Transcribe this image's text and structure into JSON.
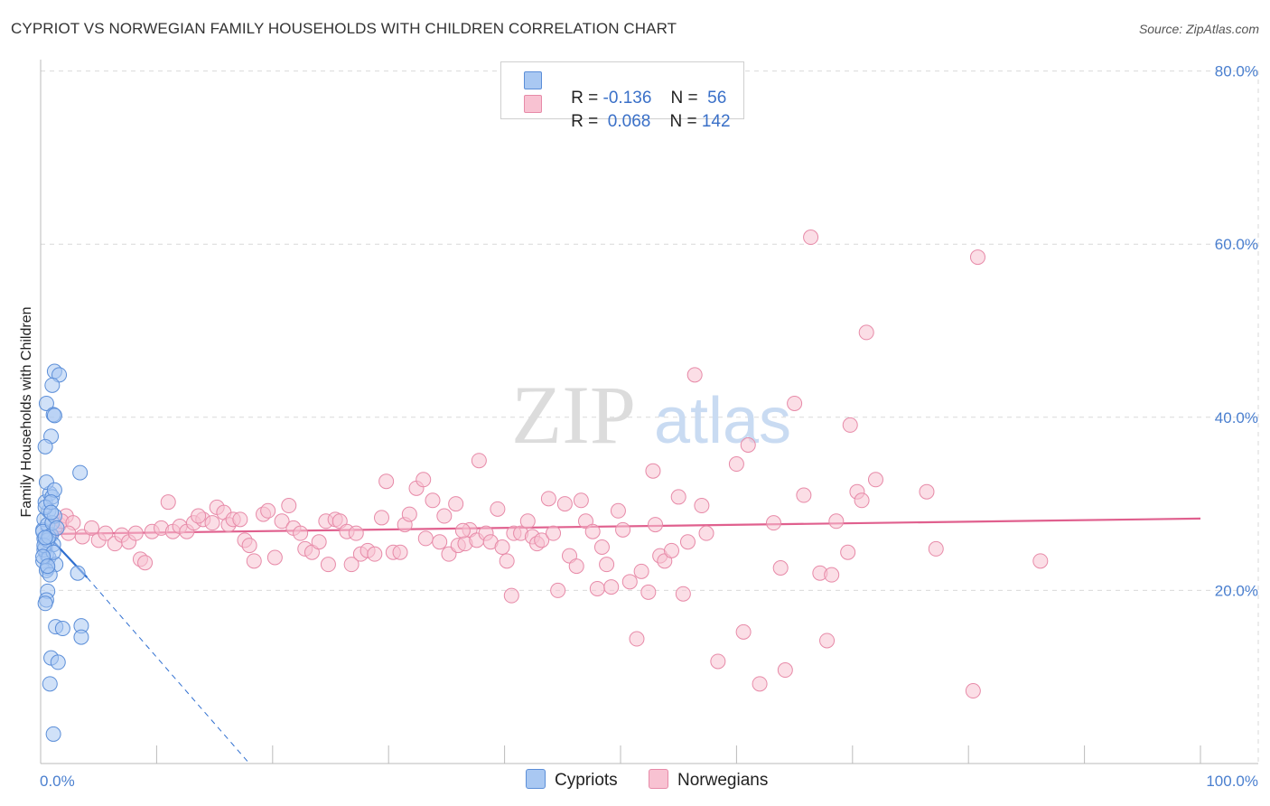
{
  "title": "CYPRIOT VS NORWEGIAN FAMILY HOUSEHOLDS WITH CHILDREN CORRELATION CHART",
  "source": "Source: ZipAtlas.com",
  "watermark": {
    "zip": "ZIP",
    "atlas": "atlas"
  },
  "colors": {
    "cypriot_fill": "#a9c8f2",
    "cypriot_stroke": "#5b8ed8",
    "cypriot_line": "#2f6fd0",
    "norwegian_fill": "#f8c2d2",
    "norwegian_stroke": "#e78aa8",
    "norwegian_line": "#e0608e",
    "grid": "#d9d9d9",
    "tick_text": "#4a7fcf"
  },
  "legend": {
    "cypriot": {
      "r_label": "R =",
      "r_value": "-0.136",
      "n_label": "N =",
      "n_value": " 56"
    },
    "norwegian": {
      "r_label": "R =",
      "r_value": " 0.068",
      "n_label": "N =",
      "n_value": "142"
    }
  },
  "bottom_legend": {
    "cypriots": "Cypriots",
    "norwegians": "Norwegians"
  },
  "chart_data": {
    "type": "scatter",
    "title": "CYPRIOT VS NORWEGIAN FAMILY HOUSEHOLDS WITH CHILDREN CORRELATION CHART",
    "xlabel": "",
    "ylabel": "Family Households with Children",
    "xlim": [
      0,
      100
    ],
    "ylim": [
      0,
      82
    ],
    "x_tick_labels": [
      "0.0%",
      "100.0%"
    ],
    "y_ticks": [
      20,
      40,
      60,
      80
    ],
    "y_tick_labels": [
      "20.0%",
      "40.0%",
      "60.0%",
      "80.0%"
    ],
    "grid": true,
    "legend_position": "top-center",
    "series": [
      {
        "name": "Cypriots",
        "r": -0.136,
        "n": 56,
        "trend": {
          "x": [
            0,
            4
          ],
          "y": [
            27.2,
            21.5
          ],
          "dashed_to": [
            18,
            0
          ]
        },
        "points": [
          [
            0.2,
            27.0
          ],
          [
            0.3,
            26.0
          ],
          [
            0.4,
            25.0
          ],
          [
            0.5,
            24.2
          ],
          [
            0.2,
            23.4
          ],
          [
            0.6,
            22.6
          ],
          [
            0.3,
            28.2
          ],
          [
            0.7,
            29.2
          ],
          [
            0.4,
            30.2
          ],
          [
            0.8,
            31.2
          ],
          [
            0.5,
            32.5
          ],
          [
            1.0,
            30.8
          ],
          [
            1.2,
            31.6
          ],
          [
            0.6,
            27.6
          ],
          [
            0.9,
            26.4
          ],
          [
            1.1,
            25.3
          ],
          [
            0.3,
            24.7
          ],
          [
            0.7,
            23.8
          ],
          [
            1.3,
            23.0
          ],
          [
            0.5,
            22.3
          ],
          [
            0.8,
            21.8
          ],
          [
            0.2,
            26.8
          ],
          [
            1.0,
            27.8
          ],
          [
            1.2,
            28.6
          ],
          [
            0.4,
            29.6
          ],
          [
            0.9,
            30.2
          ],
          [
            0.6,
            25.8
          ],
          [
            0.3,
            25.2
          ],
          [
            1.1,
            24.4
          ],
          [
            0.7,
            26.2
          ],
          [
            1.2,
            45.3
          ],
          [
            1.6,
            44.9
          ],
          [
            1.0,
            43.7
          ],
          [
            0.5,
            41.6
          ],
          [
            1.1,
            40.3
          ],
          [
            1.2,
            40.2
          ],
          [
            0.9,
            37.8
          ],
          [
            0.4,
            36.6
          ],
          [
            3.4,
            33.6
          ],
          [
            0.6,
            19.9
          ],
          [
            0.5,
            18.9
          ],
          [
            0.4,
            18.5
          ],
          [
            1.3,
            15.8
          ],
          [
            3.5,
            15.9
          ],
          [
            3.5,
            14.6
          ],
          [
            1.9,
            15.6
          ],
          [
            0.9,
            12.2
          ],
          [
            1.5,
            11.7
          ],
          [
            0.8,
            9.2
          ],
          [
            1.1,
            3.4
          ],
          [
            3.2,
            22.0
          ],
          [
            0.4,
            26.1
          ],
          [
            0.9,
            29.0
          ],
          [
            0.2,
            23.9
          ],
          [
            1.4,
            27.2
          ],
          [
            0.6,
            22.8
          ]
        ]
      },
      {
        "name": "Norwegians",
        "r": 0.068,
        "n": 142,
        "trend": {
          "x": [
            0,
            100
          ],
          "y": [
            26.5,
            28.3
          ]
        },
        "points": [
          [
            1.2,
            27.0
          ],
          [
            1.6,
            27.6
          ],
          [
            2.2,
            28.6
          ],
          [
            1.8,
            28.0
          ],
          [
            2.8,
            27.8
          ],
          [
            2.4,
            26.6
          ],
          [
            3.6,
            26.2
          ],
          [
            4.4,
            27.2
          ],
          [
            5.0,
            25.8
          ],
          [
            5.6,
            26.6
          ],
          [
            6.4,
            25.4
          ],
          [
            7.0,
            26.4
          ],
          [
            7.6,
            25.6
          ],
          [
            8.2,
            26.6
          ],
          [
            8.6,
            23.6
          ],
          [
            9.0,
            23.2
          ],
          [
            9.6,
            26.8
          ],
          [
            10.4,
            27.2
          ],
          [
            11.0,
            30.2
          ],
          [
            11.4,
            26.8
          ],
          [
            12.0,
            27.4
          ],
          [
            12.6,
            26.8
          ],
          [
            13.2,
            27.8
          ],
          [
            14.0,
            28.2
          ],
          [
            13.6,
            28.6
          ],
          [
            14.8,
            27.8
          ],
          [
            15.2,
            29.6
          ],
          [
            15.8,
            29.0
          ],
          [
            16.2,
            27.6
          ],
          [
            16.6,
            28.2
          ],
          [
            17.2,
            28.2
          ],
          [
            17.6,
            25.8
          ],
          [
            18.0,
            25.2
          ],
          [
            18.4,
            23.4
          ],
          [
            19.2,
            28.8
          ],
          [
            19.6,
            29.2
          ],
          [
            20.2,
            23.8
          ],
          [
            20.8,
            28.0
          ],
          [
            21.4,
            29.8
          ],
          [
            21.8,
            27.2
          ],
          [
            22.4,
            26.6
          ],
          [
            22.8,
            24.8
          ],
          [
            23.4,
            24.4
          ],
          [
            24.0,
            25.6
          ],
          [
            24.6,
            28.0
          ],
          [
            24.8,
            23.0
          ],
          [
            25.4,
            28.2
          ],
          [
            25.8,
            28.0
          ],
          [
            26.4,
            26.8
          ],
          [
            26.8,
            23.0
          ],
          [
            27.2,
            26.6
          ],
          [
            27.6,
            24.2
          ],
          [
            28.2,
            24.6
          ],
          [
            28.8,
            24.2
          ],
          [
            29.4,
            28.4
          ],
          [
            29.8,
            32.6
          ],
          [
            30.4,
            24.4
          ],
          [
            31.0,
            24.4
          ],
          [
            31.4,
            27.6
          ],
          [
            31.8,
            28.8
          ],
          [
            32.4,
            31.8
          ],
          [
            33.0,
            32.8
          ],
          [
            33.2,
            26.0
          ],
          [
            33.8,
            30.4
          ],
          [
            34.4,
            25.6
          ],
          [
            34.8,
            28.6
          ],
          [
            35.2,
            24.2
          ],
          [
            35.8,
            30.0
          ],
          [
            36.0,
            25.2
          ],
          [
            36.6,
            25.4
          ],
          [
            37.0,
            27.0
          ],
          [
            37.6,
            25.8
          ],
          [
            37.8,
            35.0
          ],
          [
            38.4,
            26.6
          ],
          [
            38.8,
            25.6
          ],
          [
            39.4,
            29.4
          ],
          [
            39.8,
            25.0
          ],
          [
            40.2,
            23.4
          ],
          [
            40.6,
            19.4
          ],
          [
            40.8,
            26.6
          ],
          [
            41.4,
            26.6
          ],
          [
            42.0,
            28.0
          ],
          [
            42.4,
            26.2
          ],
          [
            42.8,
            25.4
          ],
          [
            43.2,
            25.8
          ],
          [
            43.8,
            30.6
          ],
          [
            44.2,
            26.6
          ],
          [
            44.6,
            20.0
          ],
          [
            45.2,
            30.0
          ],
          [
            45.6,
            24.0
          ],
          [
            46.2,
            22.8
          ],
          [
            46.6,
            30.4
          ],
          [
            47.0,
            28.0
          ],
          [
            47.6,
            26.8
          ],
          [
            48.0,
            20.2
          ],
          [
            48.4,
            25.0
          ],
          [
            48.8,
            23.0
          ],
          [
            49.2,
            20.4
          ],
          [
            49.8,
            29.2
          ],
          [
            50.2,
            27.0
          ],
          [
            50.8,
            21.0
          ],
          [
            51.4,
            14.4
          ],
          [
            51.8,
            22.2
          ],
          [
            52.4,
            19.8
          ],
          [
            52.8,
            33.8
          ],
          [
            53.0,
            27.6
          ],
          [
            53.4,
            24.0
          ],
          [
            53.8,
            23.4
          ],
          [
            54.4,
            24.6
          ],
          [
            55.0,
            30.8
          ],
          [
            55.4,
            19.6
          ],
          [
            55.8,
            25.6
          ],
          [
            56.4,
            44.9
          ],
          [
            57.0,
            29.8
          ],
          [
            57.4,
            26.6
          ],
          [
            58.4,
            11.8
          ],
          [
            60.0,
            34.6
          ],
          [
            60.6,
            15.2
          ],
          [
            61.0,
            36.8
          ],
          [
            62.0,
            9.2
          ],
          [
            63.2,
            27.8
          ],
          [
            63.8,
            22.6
          ],
          [
            64.2,
            10.8
          ],
          [
            65.0,
            41.6
          ],
          [
            65.8,
            31.0
          ],
          [
            66.4,
            60.8
          ],
          [
            67.2,
            22.0
          ],
          [
            67.8,
            14.2
          ],
          [
            68.2,
            21.8
          ],
          [
            69.6,
            24.4
          ],
          [
            69.8,
            39.1
          ],
          [
            70.4,
            31.4
          ],
          [
            70.8,
            30.4
          ],
          [
            71.2,
            49.8
          ],
          [
            72.0,
            32.8
          ],
          [
            76.4,
            31.4
          ],
          [
            77.2,
            24.8
          ],
          [
            80.4,
            8.4
          ],
          [
            80.8,
            58.5
          ],
          [
            86.2,
            23.4
          ],
          [
            68.6,
            28.0
          ],
          [
            36.4,
            26.9
          ]
        ]
      }
    ]
  }
}
